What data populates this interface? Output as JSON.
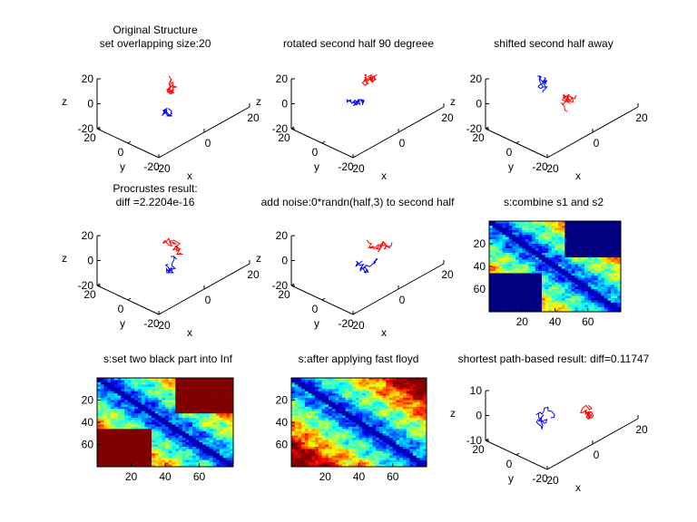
{
  "figure": {
    "panels": [
      {
        "title": "Original Structure\nset overlapping size:20"
      },
      {
        "title": "rotated second half 90 degreee"
      },
      {
        "title": "shifted second half away"
      },
      {
        "title": "Procrustes result:\ndiff =2.2204e-16"
      },
      {
        "title": "add noise:0*randn(half,3) to second half"
      },
      {
        "title": "s:combine s1 and s2"
      },
      {
        "title": "s:set two black part into Inf"
      },
      {
        "title": "s:after applying fast floyd"
      },
      {
        "title": "shortest path-based result: diff=0.11747"
      }
    ]
  },
  "chart_data": [
    {
      "type": "line3d",
      "title": "Original Structure\nset overlapping size:20",
      "xlabel": "x",
      "ylabel": "y",
      "zlabel": "z",
      "xticks": [
        "-20",
        "0",
        "20"
      ],
      "yticks": [
        "-20",
        "0",
        "20"
      ],
      "zticks": [
        "-20",
        "0",
        "20"
      ],
      "xlim": [
        -25,
        25
      ],
      "ylim": [
        -25,
        25
      ],
      "zlim": [
        -20,
        20
      ],
      "series": [
        {
          "name": "",
          "color": "#ff0000"
        },
        {
          "name": "",
          "color": "#0000ff"
        }
      ]
    },
    {
      "type": "line3d",
      "title": "rotated second half 90 degreee",
      "xlabel": "x",
      "ylabel": "y",
      "zlabel": "z",
      "xticks": [
        "-20",
        "0",
        "20"
      ],
      "yticks": [
        "-20",
        "0",
        "20"
      ],
      "zticks": [
        "-20",
        "0",
        "20"
      ],
      "xlim": [
        -25,
        25
      ],
      "ylim": [
        -25,
        25
      ],
      "zlim": [
        -20,
        20
      ],
      "series": [
        {
          "name": "",
          "color": "#ff0000"
        },
        {
          "name": "",
          "color": "#0000ff"
        }
      ]
    },
    {
      "type": "line3d",
      "title": "shifted second half away",
      "xlabel": "x",
      "ylabel": "y",
      "zlabel": "z",
      "xticks": [
        "-20",
        "0",
        "20"
      ],
      "yticks": [
        "-20",
        "0",
        "20"
      ],
      "zticks": [
        "-20",
        "0",
        "20"
      ],
      "xlim": [
        -25,
        25
      ],
      "ylim": [
        -25,
        25
      ],
      "zlim": [
        -20,
        20
      ],
      "series": [
        {
          "name": "",
          "color": "#ff0000"
        },
        {
          "name": "",
          "color": "#0000ff"
        }
      ]
    },
    {
      "type": "line3d",
      "title": "Procrustes result:\ndiff =2.2204e-16",
      "xlabel": "x",
      "ylabel": "y",
      "zlabel": "z",
      "xticks": [
        "-20",
        "0",
        "20"
      ],
      "yticks": [
        "-20",
        "0",
        "20"
      ],
      "zticks": [
        "-20",
        "0",
        "20"
      ],
      "xlim": [
        -25,
        25
      ],
      "ylim": [
        -25,
        25
      ],
      "zlim": [
        -20,
        20
      ],
      "series": [
        {
          "name": "",
          "color": "#ff0000"
        },
        {
          "name": "",
          "color": "#0000ff"
        }
      ]
    },
    {
      "type": "line3d",
      "title": "add noise:0*randn(half,3) to second half",
      "xlabel": "x",
      "ylabel": "y",
      "zlabel": "z",
      "xticks": [
        "-20",
        "0",
        "20"
      ],
      "yticks": [
        "-20",
        "0",
        "20"
      ],
      "zticks": [
        "-20",
        "0",
        "20"
      ],
      "xlim": [
        -25,
        25
      ],
      "ylim": [
        -25,
        25
      ],
      "zlim": [
        -20,
        20
      ],
      "series": [
        {
          "name": "",
          "color": "#ff0000"
        },
        {
          "name": "",
          "color": "#0000ff"
        }
      ]
    },
    {
      "type": "heatmap",
      "title": "s:combine s1 and s2",
      "size": 80,
      "colormap": "jet",
      "xticks": [
        "20",
        "40",
        "60"
      ],
      "yticks": [
        "20",
        "40",
        "60"
      ],
      "block_color": "#000080"
    },
    {
      "type": "heatmap",
      "title": "s:set two black part into Inf",
      "size": 80,
      "colormap": "jet",
      "xticks": [
        "20",
        "40",
        "60"
      ],
      "yticks": [
        "20",
        "40",
        "60"
      ],
      "block_color": "#800000"
    },
    {
      "type": "heatmap",
      "title": "s:after applying fast floyd",
      "size": 80,
      "colormap": "jet",
      "xticks": [
        "20",
        "40",
        "60"
      ],
      "yticks": [
        "20",
        "40",
        "60"
      ],
      "block_color": ""
    },
    {
      "type": "line3d",
      "title": "shortest path-based result: diff=0.11747",
      "xlabel": "x",
      "ylabel": "y",
      "zlabel": "z",
      "xticks": [
        "-20",
        "0",
        "20"
      ],
      "yticks": [
        "-20",
        "0",
        "20"
      ],
      "zticks": [
        "-10",
        "0",
        "10"
      ],
      "xlim": [
        -25,
        25
      ],
      "ylim": [
        -25,
        25
      ],
      "zlim": [
        -10,
        10
      ],
      "series": [
        {
          "name": "",
          "color": "#ff0000"
        },
        {
          "name": "",
          "color": "#0000ff"
        }
      ]
    }
  ]
}
